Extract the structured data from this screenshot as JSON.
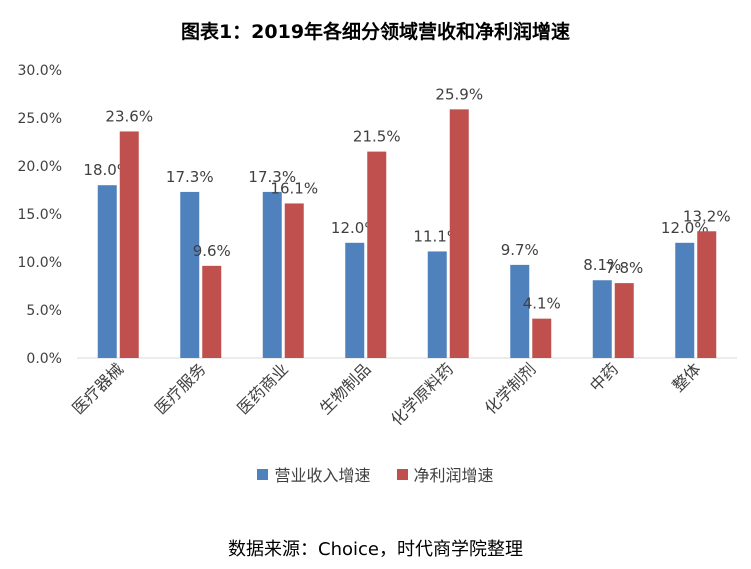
{
  "title": "图表1：2019年各细分领域营收和净利润增速",
  "source": "数据来源：Choice，时代商学院整理",
  "colors": {
    "revenue": "#4F81BD",
    "profit": "#C0504D",
    "axis": "#D9D9D9"
  },
  "chart_data": {
    "type": "bar",
    "title": "图表1：2019年各细分领域营收和净利润增速",
    "categories": [
      "医疗器械",
      "医疗服务",
      "医药商业",
      "生物制品",
      "化学原料药",
      "化学制剂",
      "中药",
      "整体"
    ],
    "series": [
      {
        "name": "营业收入增速",
        "values": [
          18.0,
          17.3,
          17.3,
          12.0,
          11.1,
          9.7,
          8.1,
          12.0
        ],
        "labels": [
          "18.0%",
          "17.3%",
          "17.3%",
          "12.0%",
          "11.1%",
          "9.7%",
          "8.1%",
          "12.0%"
        ]
      },
      {
        "name": "净利润增速",
        "values": [
          23.6,
          9.6,
          16.1,
          21.5,
          25.9,
          4.1,
          7.8,
          13.2
        ],
        "labels": [
          "23.6%",
          "9.6%",
          "16.1%",
          "21.5%",
          "25.9%",
          "4.1%",
          "7.8%",
          "13.2%"
        ]
      }
    ],
    "ylim": [
      0,
      30
    ],
    "yticks": [
      "0.0%",
      "5.0%",
      "10.0%",
      "15.0%",
      "20.0%",
      "25.0%",
      "30.0%"
    ],
    "xlabel": "",
    "ylabel": "",
    "legend": "bottom",
    "grid": false
  }
}
